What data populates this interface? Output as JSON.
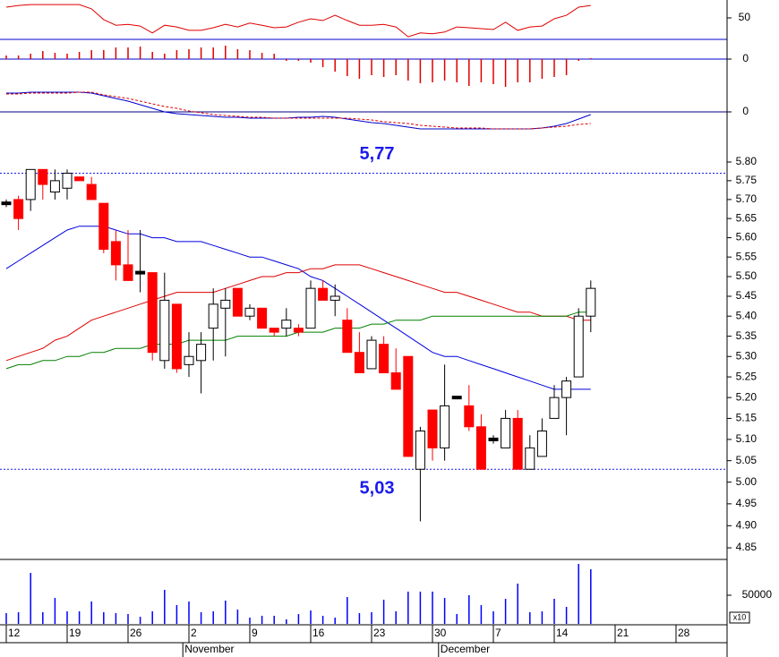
{
  "chart_data": [
    {
      "type": "line",
      "ylim": [
        0,
        100
      ],
      "yticks": [
        50
      ],
      "series": [
        {
          "color": "#e00000",
          "values": [
            75,
            79,
            81,
            81,
            81,
            81,
            81,
            71,
            46,
            33,
            35,
            31,
            15,
            33,
            29,
            21,
            21,
            27,
            35,
            29,
            38,
            33,
            27,
            29,
            40,
            48,
            44,
            56,
            44,
            33,
            33,
            35,
            29,
            6,
            15,
            13,
            17,
            29,
            27,
            25,
            23,
            40,
            21,
            29,
            31,
            48,
            56,
            75,
            79
          ]
        }
      ]
    },
    {
      "type": "bar",
      "ylim": [
        -0.034,
        0.022
      ],
      "yticks": [
        0
      ],
      "grid": true,
      "grid_color": "#0000cc",
      "color": "#e00000",
      "values": [
        0.004,
        0.004,
        0.006,
        0.009,
        0.007,
        0.006,
        0.008,
        0.01,
        0.01,
        0.013,
        0.013,
        0.014,
        0.008,
        0.006,
        0.01,
        0.011,
        0.013,
        0.013,
        0.015,
        0.011,
        0.01,
        0.007,
        0.006,
        -0.002,
        -0.002,
        -0.004,
        -0.009,
        -0.014,
        -0.019,
        -0.022,
        -0.018,
        -0.02,
        -0.018,
        -0.024,
        -0.027,
        -0.026,
        -0.024,
        -0.026,
        -0.03,
        -0.026,
        -0.028,
        -0.031,
        -0.026,
        -0.026,
        -0.022,
        -0.02,
        -0.018,
        -0.002,
        0.001
      ]
    },
    {
      "type": "line",
      "ylim": [
        -0.025,
        0.037
      ],
      "yticks": [
        0
      ],
      "grid": true,
      "grid_color": "#000080",
      "series": [
        {
          "color": "#0000cc",
          "values": [
            0.021,
            0.021,
            0.022,
            0.022,
            0.022,
            0.022,
            0.022,
            0.021,
            0.018,
            0.015,
            0.012,
            0.008,
            0.004,
            0,
            -0.002,
            -0.003,
            -0.004,
            -0.005,
            -0.006,
            -0.006,
            -0.007,
            -0.007,
            -0.007,
            -0.007,
            -0.006,
            -0.006,
            -0.005,
            -0.006,
            -0.008,
            -0.01,
            -0.012,
            -0.013,
            -0.015,
            -0.017,
            -0.019,
            -0.019,
            -0.019,
            -0.019,
            -0.019,
            -0.019,
            -0.019,
            -0.019,
            -0.019,
            -0.019,
            -0.018,
            -0.016,
            -0.013,
            -0.008,
            -0.003
          ]
        },
        {
          "color": "#e00000",
          "dash": true,
          "values": [
            0.02,
            0.02,
            0.021,
            0.021,
            0.021,
            0.021,
            0.022,
            0.022,
            0.019,
            0.017,
            0.015,
            0.012,
            0.009,
            0.006,
            0.004,
            0.001,
            -0.001,
            -0.003,
            -0.004,
            -0.005,
            -0.006,
            -0.006,
            -0.007,
            -0.007,
            -0.007,
            -0.007,
            -0.007,
            -0.007,
            -0.007,
            -0.008,
            -0.009,
            -0.011,
            -0.012,
            -0.013,
            -0.015,
            -0.016,
            -0.017,
            -0.018,
            -0.018,
            -0.018,
            -0.019,
            -0.019,
            -0.019,
            -0.019,
            -0.018,
            -0.017,
            -0.016,
            -0.014,
            -0.013
          ]
        }
      ]
    },
    {
      "type": "candlestick",
      "yscale": "log",
      "ylim": [
        4.83,
        5.88
      ],
      "yticks": [
        {
          "value": 5.8,
          "label": "5.80"
        },
        5.75,
        {
          "value": 5.7,
          "label": "5.70"
        },
        5.65,
        {
          "value": 5.6,
          "label": "5.60"
        },
        5.55,
        {
          "value": 5.5,
          "label": "5.50"
        },
        5.45,
        {
          "value": 5.4,
          "label": "5.40"
        },
        5.35,
        {
          "value": 5.3,
          "label": "5.30"
        },
        5.25,
        {
          "value": 5.2,
          "label": "5.20"
        },
        5.15,
        {
          "value": 5.1,
          "label": "5.10"
        },
        5.05,
        {
          "value": 5,
          "label": "5.00"
        },
        4.95,
        {
          "value": 4.9,
          "label": "4.90"
        },
        4.85
      ],
      "up_color": "#ffffff",
      "down_color": "#ff0000",
      "flat_color": "#000000",
      "open": [
        5.69,
        5.7,
        5.7,
        5.78,
        5.72,
        5.73,
        5.76,
        5.74,
        5.69,
        5.59,
        5.53,
        5.51,
        5.51,
        5.29,
        5.43,
        5.28,
        5.29,
        5.37,
        5.42,
        5.47,
        5.4,
        5.42,
        5.37,
        5.37,
        5.37,
        5.37,
        5.47,
        5.44,
        5.39,
        5.31,
        5.27,
        5.33,
        5.26,
        5.3,
        5.03,
        5.17,
        5.08,
        5.2,
        5.18,
        5.13,
        5.1,
        5.08,
        5.15,
        5.03,
        5.06,
        5.15,
        5.2,
        5.25,
        5.4
      ],
      "high": [
        5.7,
        5.71,
        5.78,
        5.78,
        5.78,
        5.78,
        5.76,
        5.76,
        5.69,
        5.62,
        5.62,
        5.62,
        5.51,
        5.51,
        5.43,
        5.36,
        5.36,
        5.47,
        5.47,
        5.47,
        5.43,
        5.42,
        5.37,
        5.42,
        5.38,
        5.49,
        5.49,
        5.48,
        5.42,
        5.36,
        5.35,
        5.35,
        5.32,
        5.3,
        5.13,
        5.17,
        5.28,
        5.2,
        5.23,
        5.16,
        5.11,
        5.17,
        5.17,
        5.11,
        5.15,
        5.23,
        5.25,
        5.42,
        5.49
      ],
      "low": [
        5.68,
        5.62,
        5.67,
        5.7,
        5.7,
        5.7,
        5.75,
        5.7,
        5.56,
        5.49,
        5.49,
        5.46,
        5.29,
        5.27,
        5.26,
        5.25,
        5.21,
        5.29,
        5.3,
        5.4,
        5.39,
        5.37,
        5.35,
        5.35,
        5.35,
        5.37,
        5.44,
        5.4,
        5.31,
        5.26,
        5.27,
        5.26,
        5.22,
        5.06,
        4.91,
        5.05,
        5.05,
        5.2,
        5.12,
        5.03,
        5.09,
        5.08,
        5.03,
        5.03,
        5.06,
        5.15,
        5.11,
        5.25,
        5.36
      ],
      "close": [
        5.69,
        5.65,
        5.78,
        5.74,
        5.75,
        5.77,
        5.75,
        5.7,
        5.57,
        5.53,
        5.49,
        5.51,
        5.31,
        5.44,
        5.27,
        5.3,
        5.33,
        5.43,
        5.44,
        5.4,
        5.42,
        5.37,
        5.36,
        5.39,
        5.36,
        5.47,
        5.44,
        5.45,
        5.31,
        5.26,
        5.34,
        5.26,
        5.22,
        5.06,
        5.12,
        5.08,
        5.18,
        5.2,
        5.13,
        5.03,
        5.1,
        5.15,
        5.03,
        5.08,
        5.12,
        5.2,
        5.24,
        5.4,
        5.47
      ],
      "series": [
        {
          "color": "#0000dd",
          "values": [
            5.52,
            5.54,
            5.56,
            5.58,
            5.6,
            5.62,
            5.63,
            5.63,
            5.63,
            5.62,
            5.61,
            5.61,
            5.6,
            5.6,
            5.59,
            5.59,
            5.59,
            5.58,
            5.57,
            5.56,
            5.55,
            5.55,
            5.54,
            5.53,
            5.52,
            5.5,
            5.49,
            5.47,
            5.45,
            5.43,
            5.41,
            5.39,
            5.37,
            5.35,
            5.33,
            5.31,
            5.3,
            5.3,
            5.29,
            5.28,
            5.27,
            5.26,
            5.25,
            5.24,
            5.23,
            5.22,
            5.22,
            5.22,
            5.22
          ]
        },
        {
          "color": "#dd0000",
          "values": [
            5.29,
            5.3,
            5.31,
            5.32,
            5.34,
            5.35,
            5.37,
            5.39,
            5.4,
            5.41,
            5.42,
            5.43,
            5.44,
            5.45,
            5.46,
            5.46,
            5.46,
            5.46,
            5.47,
            5.48,
            5.49,
            5.5,
            5.5,
            5.51,
            5.51,
            5.52,
            5.52,
            5.53,
            5.53,
            5.53,
            5.52,
            5.51,
            5.5,
            5.49,
            5.48,
            5.47,
            5.46,
            5.46,
            5.45,
            5.44,
            5.43,
            5.42,
            5.41,
            5.41,
            5.4,
            5.4,
            5.4,
            5.39,
            5.39
          ]
        },
        {
          "color": "#008000",
          "values": [
            5.27,
            5.28,
            5.28,
            5.29,
            5.29,
            5.3,
            5.3,
            5.31,
            5.31,
            5.32,
            5.32,
            5.32,
            5.33,
            5.33,
            5.33,
            5.34,
            5.34,
            5.34,
            5.34,
            5.35,
            5.35,
            5.35,
            5.35,
            5.35,
            5.36,
            5.36,
            5.36,
            5.37,
            5.37,
            5.37,
            5.38,
            5.38,
            5.39,
            5.39,
            5.39,
            5.4,
            5.4,
            5.4,
            5.4,
            5.4,
            5.4,
            5.4,
            5.4,
            5.4,
            5.4,
            5.4,
            5.4,
            5.41,
            5.41
          ]
        }
      ],
      "hlines": [
        {
          "value": 5.77,
          "label": "5,77"
        },
        {
          "value": 5.03,
          "label": "5,03"
        }
      ],
      "hline_color": "#1a1aee"
    },
    {
      "type": "bar",
      "ylim": [
        0,
        112500
      ],
      "yticks": [
        50000
      ],
      "color": "#0000ff",
      "axis_note": "x10",
      "values": [
        18750,
        20300,
        89000,
        20300,
        45300,
        21900,
        21900,
        39100,
        20300,
        18750,
        17200,
        12500,
        21900,
        59400,
        32800,
        39100,
        20300,
        21900,
        40600,
        25000,
        10900,
        14100,
        14100,
        7800,
        17200,
        23400,
        14100,
        10900,
        46900,
        18750,
        20300,
        42200,
        21900,
        56300,
        56300,
        56300,
        45300,
        17200,
        50000,
        32800,
        21900,
        43800,
        70300,
        20300,
        21900,
        43800,
        29700,
        104700,
        95300,
        null,
        null,
        null,
        null,
        null,
        null,
        null,
        null,
        null,
        null
      ],
      "categories": [
        "12",
        null,
        null,
        null,
        null,
        "19",
        null,
        null,
        null,
        null,
        "26",
        null,
        null,
        null,
        null,
        "2",
        null,
        null,
        null,
        null,
        "9",
        null,
        null,
        null,
        null,
        "16",
        null,
        null,
        null,
        null,
        "23",
        null,
        null,
        null,
        null,
        "30",
        null,
        null,
        null,
        null,
        "7",
        null,
        null,
        null,
        null,
        "14",
        null,
        null,
        null,
        null,
        "21",
        null,
        null,
        null,
        null,
        "28",
        null,
        null,
        null
      ],
      "month_labels": [
        null,
        null,
        null,
        null,
        null,
        null,
        null,
        null,
        null,
        null,
        null,
        null,
        null,
        null,
        null,
        "November",
        null,
        null,
        null,
        null,
        null,
        null,
        null,
        null,
        null,
        null,
        null,
        null,
        null,
        null,
        null,
        null,
        null,
        null,
        null,
        null,
        "December",
        null,
        null,
        null,
        null,
        null,
        null,
        null,
        null,
        null,
        null,
        null,
        null,
        null,
        null,
        null,
        null,
        null,
        null,
        null,
        null,
        null,
        null
      ]
    }
  ]
}
